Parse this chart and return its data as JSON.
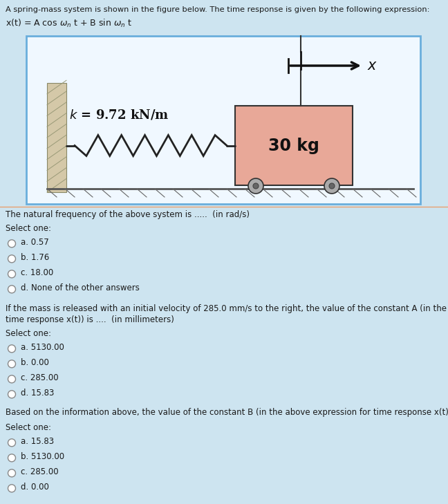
{
  "bg_color": "#cde4f0",
  "diagram_bg": "#f0f8ff",
  "diagram_border": "#6aaedc",
  "header_text": "A spring-mass system is shown in the figure below. The time response is given by the following expression:",
  "formula_text": "x(t) = A cos ω_n t + B sin ω_n t",
  "spring_label": "k = 9.72 kN/m",
  "mass_label": "30 kg",
  "mass_color": "#e8a898",
  "mass_border": "#333333",
  "wall_color": "#d4c8a8",
  "wall_hatch": "#b8a888",
  "floor_color": "#b8b8b8",
  "wheel_color": "#888888",
  "spring_color": "#222222",
  "q1_text": "The natural frequency of the above system is .....  (in rad/s)",
  "q1_select": "Select one:",
  "q1_options": [
    "a. 0.57",
    "b. 1.76",
    "c. 18.00",
    "d. None of the other answers"
  ],
  "q2_line1": "If the mass is released with an initial velocity of 285.0 mm/s to the right, the value of the constant A (in the above expression for",
  "q2_line2": "time response x(t)) is ....  (in millimeters)",
  "q2_select": "Select one:",
  "q2_options": [
    "a. 5130.00",
    "b. 0.00",
    "c. 285.00",
    "d. 15.83"
  ],
  "q3_text": "Based on the information above, the value of the constant B (in the above expression for time response x(t)) is .... (in millimeters)",
  "q3_select": "Select one:",
  "q3_options": [
    "a. 15.83",
    "b. 5130.00",
    "c. 285.00",
    "d. 0.00"
  ]
}
